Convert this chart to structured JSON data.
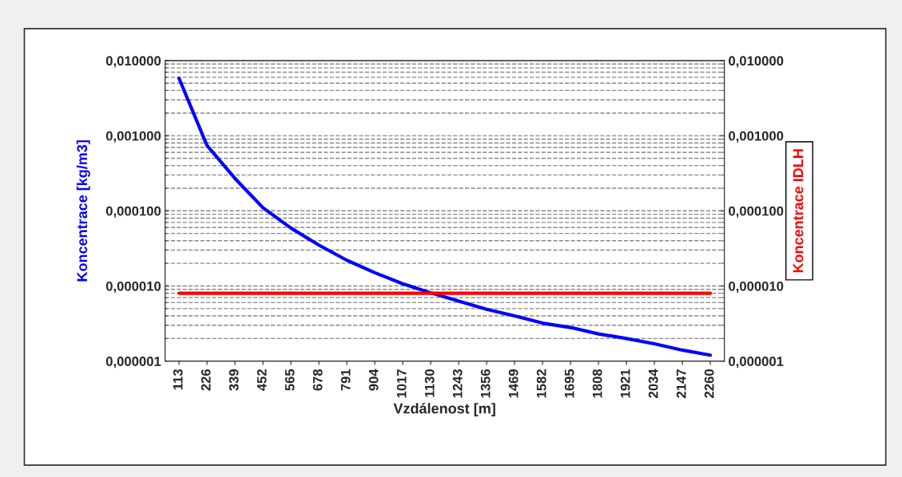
{
  "chart_data": {
    "type": "line",
    "xlabel": "Vzdálenost [m]",
    "ylabel": "Koncentrace [kg/m3]",
    "y2label": "Koncentrace IDLH",
    "categories": [
      "113",
      "226",
      "339",
      "452",
      "565",
      "678",
      "791",
      "904",
      "1017",
      "1130",
      "1243",
      "1356",
      "1469",
      "1582",
      "1695",
      "1808",
      "1921",
      "2034",
      "2147",
      "2260"
    ],
    "series": [
      {
        "color": "#0000ff",
        "values": [
          0.0058,
          0.00074,
          0.00027,
          0.00011,
          5.9e-05,
          3.5e-05,
          2.2e-05,
          1.5e-05,
          1.07e-05,
          8.1e-06,
          6.3e-06,
          4.9e-06,
          4e-06,
          3.2e-06,
          2.8e-06,
          2.3e-06,
          2e-06,
          1.7e-06,
          1.4e-06,
          1.2e-06
        ]
      },
      {
        "color": "#ff0000",
        "values": [
          8e-06,
          8e-06,
          8e-06,
          8e-06,
          8e-06,
          8e-06,
          8e-06,
          8e-06,
          8e-06,
          8e-06,
          8e-06,
          8e-06,
          8e-06,
          8e-06,
          8e-06,
          8e-06,
          8e-06,
          8e-06,
          8e-06,
          8e-06
        ]
      }
    ],
    "log": "y",
    "ylim": [
      1e-06,
      0.01
    ],
    "yticks": [
      {
        "value": 1e-06,
        "label": "0,000001"
      },
      {
        "value": 1e-05,
        "label": "0,000010"
      },
      {
        "value": 0.0001,
        "label": "0,000100"
      },
      {
        "value": 0.001,
        "label": "0,001000"
      },
      {
        "value": 0.01,
        "label": "0,010000"
      }
    ],
    "grid": "y",
    "legend": false,
    "marker": "none",
    "line_style": "solid"
  }
}
